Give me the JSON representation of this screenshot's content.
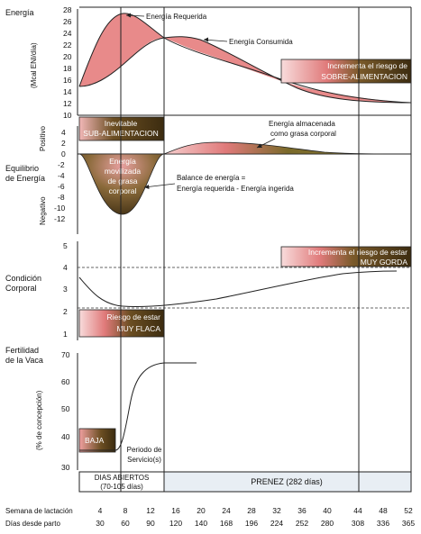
{
  "panel_energia": {
    "title": "Energía",
    "ylabel": "(Mcal ENl/día)",
    "yticks": [
      "28",
      "26",
      "24",
      "22",
      "20",
      "18",
      "16",
      "14",
      "12",
      "10"
    ],
    "label_requerida": "Energía Requerida",
    "label_consumida": "Energía Consumida",
    "box_sobre_line1": "Incrementa el riesgo de",
    "box_sobre_line2": "SOBRE-ALIMENTACION"
  },
  "panel_balance": {
    "title_line1": "Equilibrio",
    "title_line2": "de Energía",
    "label_positivo": "Positivo",
    "label_negativo": "Negativo",
    "yticks": [
      "4",
      "2",
      "0",
      "-2",
      "-4",
      "-6",
      "-8",
      "-10",
      "-12"
    ],
    "box_sub_line1": "Inevitable",
    "box_sub_line2": "SUB-ALIMENTACION",
    "movilizada_lines": [
      "Energía",
      "movilizada",
      "de grasa",
      "corporal"
    ],
    "almacenada_line1": "Energía almacenada",
    "almacenada_line2": "como grasa corporal",
    "balance_line1": "Balance de energía =",
    "balance_line2": "Energía requerida - Energía ingerida"
  },
  "panel_condicion": {
    "title_line1": "Condición",
    "title_line2": "Corporal",
    "yticks": [
      "5",
      "4",
      "3",
      "2",
      "1"
    ],
    "box_gorda_line1": "Incrementa el riesgo de estar",
    "box_gorda_line2": "MUY GORDA",
    "box_flaca_line1": "Riesgo de estar",
    "box_flaca_line2": "MUY FLACA"
  },
  "panel_fertilidad": {
    "title_line1": "Fertilidad",
    "title_line2": "de la Vaca",
    "ylabel": "(% de concepción)",
    "yticks": [
      "70",
      "60",
      "50",
      "40",
      "30"
    ],
    "box_baja": "BAJA",
    "periodo_line1": "Periodo de",
    "periodo_line2": "Servicio(s)"
  },
  "timeline": {
    "dias_abiertos_line1": "DIAS ABIERTOS",
    "dias_abiertos_line2": "(70-105 días)",
    "prenez": "PRENEZ  (282 días)"
  },
  "x_axis": {
    "semana_label": "Semana de lactación",
    "dias_label": "Días desde parto",
    "semanas": [
      "4",
      "8",
      "12",
      "16",
      "20",
      "24",
      "28",
      "32",
      "36",
      "40",
      "44",
      "48",
      "52"
    ],
    "dias": [
      "30",
      "60",
      "90",
      "120",
      "140",
      "168",
      "196",
      "224",
      "252",
      "280",
      "308",
      "336",
      "365"
    ]
  },
  "colors": {
    "pink": "#e88a8a",
    "pink_light": "#f6cfcf",
    "olive_dark": "#4a3a18",
    "olive": "#8a7a3a",
    "frame": "#222222"
  }
}
